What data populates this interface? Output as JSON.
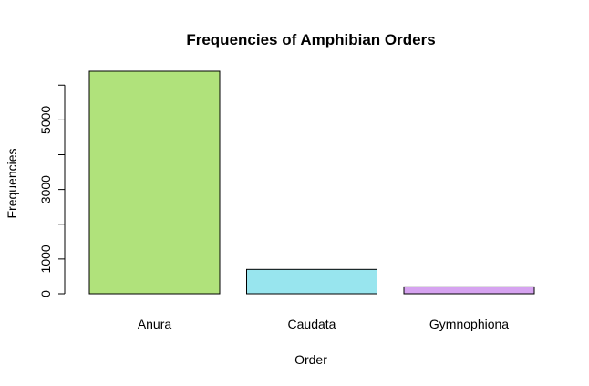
{
  "chart_data": {
    "type": "bar",
    "title": "Frequencies of Amphibian Orders",
    "xlabel": "Order",
    "ylabel": "Frequencies",
    "categories": [
      "Anura",
      "Caudata",
      "Gymnophiona"
    ],
    "values": [
      6400,
      700,
      200
    ],
    "colors": [
      "#b0e27b",
      "#98e5ee",
      "#d6a3f0"
    ],
    "ylim": [
      0,
      6400
    ],
    "yticks": [
      0,
      1000,
      2000,
      3000,
      4000,
      5000,
      6000
    ],
    "ytick_labels": [
      "0",
      "1000",
      "",
      "3000",
      "",
      "5000",
      ""
    ],
    "grid": false,
    "legend": "none"
  }
}
